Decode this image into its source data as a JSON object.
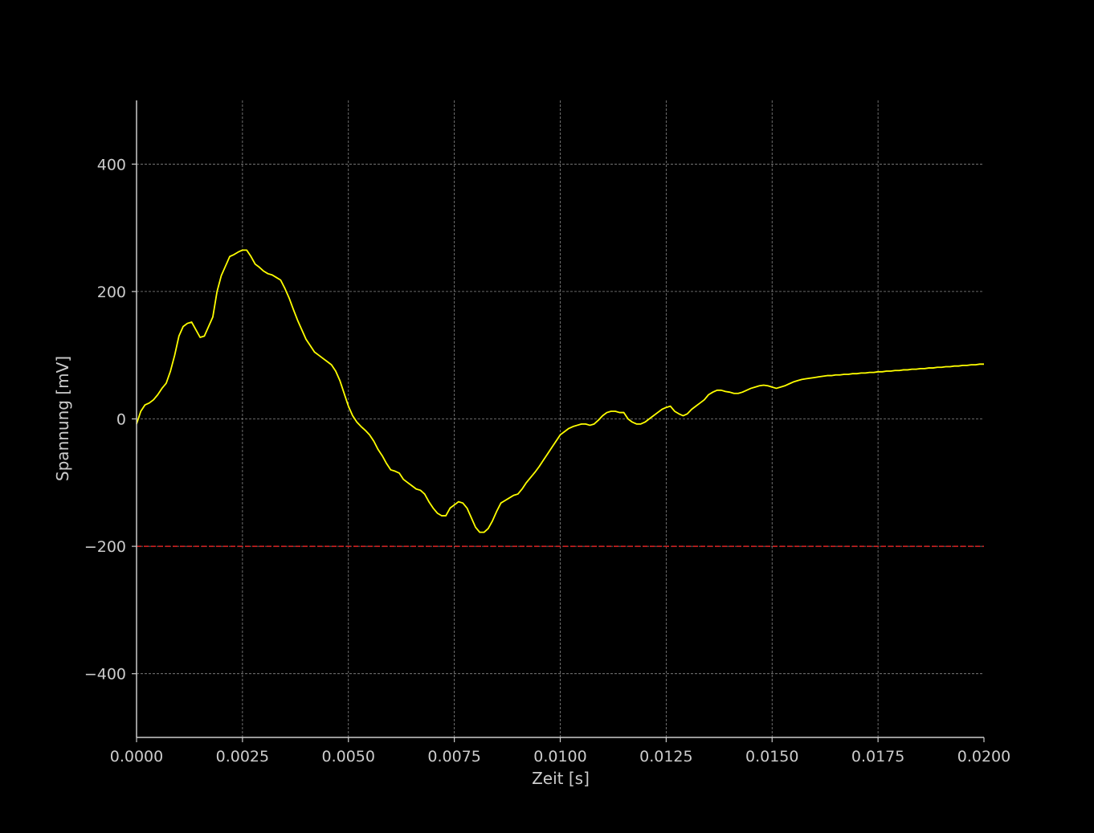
{
  "colors": {
    "background": "#000000",
    "axis": "#cccccc",
    "grid": "#888888",
    "signal": "#ffff00",
    "threshold": "#dd2222",
    "text": "#cccccc"
  },
  "chart_data": {
    "type": "line",
    "title": "",
    "xlabel": "Zeit [s]",
    "ylabel": "Spannung [mV]",
    "xlim": [
      0.0,
      0.02
    ],
    "ylim": [
      -500,
      500
    ],
    "grid": true,
    "grid_style": "dashed",
    "xticks": [
      0.0,
      0.0025,
      0.005,
      0.0075,
      0.01,
      0.0125,
      0.015,
      0.0175,
      0.02
    ],
    "xtick_labels": [
      "0.0000",
      "0.0025",
      "0.0050",
      "0.0075",
      "0.0100",
      "0.0125",
      "0.0150",
      "0.0175",
      "0.0200"
    ],
    "yticks": [
      -400,
      -200,
      0,
      200,
      400
    ],
    "ytick_labels": [
      "−400",
      "−200",
      "0",
      "200",
      "400"
    ],
    "hlines": [
      {
        "y": -200,
        "color": "#dd2222",
        "style": "dashed"
      }
    ],
    "series": [
      {
        "color": "#ffff00",
        "x": [
          0.0,
          0.0001,
          0.0002,
          0.0003,
          0.0004,
          0.0005,
          0.0006,
          0.0007,
          0.0008,
          0.0009,
          0.001,
          0.0011,
          0.0012,
          0.0013,
          0.0014,
          0.0015,
          0.0016,
          0.0017,
          0.0018,
          0.0019,
          0.002,
          0.0021,
          0.0022,
          0.0023,
          0.0024,
          0.0025,
          0.0026,
          0.0027,
          0.0028,
          0.0029,
          0.003,
          0.0031,
          0.0032,
          0.0033,
          0.0034,
          0.0035,
          0.0036,
          0.0037,
          0.0038,
          0.0039,
          0.004,
          0.0041,
          0.0042,
          0.0043,
          0.0044,
          0.0045,
          0.0046,
          0.0047,
          0.0048,
          0.0049,
          0.005,
          0.0051,
          0.0052,
          0.0053,
          0.0054,
          0.0055,
          0.0056,
          0.0057,
          0.0058,
          0.0059,
          0.006,
          0.0061,
          0.0062,
          0.0063,
          0.0064,
          0.0065,
          0.0066,
          0.0067,
          0.0068,
          0.0069,
          0.007,
          0.0071,
          0.0072,
          0.0073,
          0.0074,
          0.0075,
          0.0076,
          0.0077,
          0.0078,
          0.0079,
          0.008,
          0.0081,
          0.0082,
          0.0083,
          0.0084,
          0.0085,
          0.0086,
          0.0087,
          0.0088,
          0.0089,
          0.009,
          0.0091,
          0.0092,
          0.0093,
          0.0094,
          0.0095,
          0.0096,
          0.0097,
          0.0098,
          0.0099,
          0.01,
          0.0101,
          0.0102,
          0.0103,
          0.0104,
          0.0105,
          0.0106,
          0.0107,
          0.0108,
          0.0109,
          0.011,
          0.0111,
          0.0112,
          0.0113,
          0.0114,
          0.0115,
          0.0116,
          0.0117,
          0.0118,
          0.0119,
          0.012,
          0.0121,
          0.0122,
          0.0123,
          0.0124,
          0.0125,
          0.0126,
          0.0127,
          0.0128,
          0.0129,
          0.013,
          0.0131,
          0.0132,
          0.0133,
          0.0134,
          0.0135,
          0.0136,
          0.0137,
          0.0138,
          0.0139,
          0.014,
          0.0141,
          0.0142,
          0.0143,
          0.0144,
          0.0145,
          0.0146,
          0.0147,
          0.0148,
          0.0149,
          0.015,
          0.0151,
          0.0152,
          0.0153,
          0.0154,
          0.0155,
          0.0156,
          0.0157,
          0.0158,
          0.0159,
          0.016,
          0.0161,
          0.0162,
          0.0163,
          0.0164,
          0.0165,
          0.0166,
          0.0167,
          0.0168,
          0.0169,
          0.017,
          0.0171,
          0.0172,
          0.0173,
          0.0174,
          0.0175,
          0.0176,
          0.0177,
          0.0178,
          0.0179,
          0.018,
          0.0181,
          0.0182,
          0.0183,
          0.0184,
          0.0185,
          0.0186,
          0.0187,
          0.0188,
          0.0189,
          0.019,
          0.0191,
          0.0192,
          0.0193,
          0.0194,
          0.0195,
          0.0196,
          0.0197,
          0.0198,
          0.0199,
          0.02
        ],
        "y": [
          -8,
          12,
          22,
          25,
          30,
          38,
          48,
          56,
          75,
          100,
          130,
          145,
          150,
          152,
          140,
          128,
          130,
          145,
          160,
          200,
          225,
          240,
          255,
          258,
          262,
          265,
          265,
          255,
          243,
          238,
          232,
          228,
          226,
          222,
          218,
          205,
          190,
          172,
          155,
          140,
          125,
          115,
          105,
          100,
          95,
          90,
          85,
          75,
          60,
          40,
          20,
          5,
          -5,
          -12,
          -18,
          -25,
          -35,
          -48,
          -58,
          -70,
          -80,
          -82,
          -85,
          -95,
          -100,
          -105,
          -110,
          -112,
          -118,
          -130,
          -140,
          -148,
          -152,
          -152,
          -140,
          -135,
          -130,
          -132,
          -140,
          -155,
          -170,
          -178,
          -178,
          -172,
          -160,
          -145,
          -132,
          -128,
          -124,
          -120,
          -118,
          -110,
          -100,
          -92,
          -84,
          -75,
          -65,
          -55,
          -45,
          -35,
          -25,
          -20,
          -15,
          -12,
          -10,
          -8,
          -8,
          -10,
          -8,
          -2,
          5,
          10,
          12,
          12,
          10,
          10,
          0,
          -5,
          -8,
          -8,
          -5,
          0,
          5,
          10,
          15,
          18,
          20,
          12,
          8,
          5,
          8,
          15,
          20,
          25,
          30,
          38,
          42,
          45,
          45,
          43,
          42,
          40,
          40,
          42,
          45,
          48,
          50,
          52,
          53,
          52,
          50,
          48,
          50,
          52,
          55,
          58,
          60,
          62,
          63,
          64,
          65,
          66,
          67,
          68,
          68,
          69,
          69,
          70,
          70,
          71,
          71,
          72,
          72,
          73,
          73,
          74,
          74,
          75,
          75,
          76,
          76,
          77,
          77,
          78,
          78,
          79,
          79,
          80,
          80,
          81,
          81,
          82,
          82,
          83,
          83,
          84,
          84,
          85,
          85,
          86,
          86
        ]
      }
    ]
  }
}
